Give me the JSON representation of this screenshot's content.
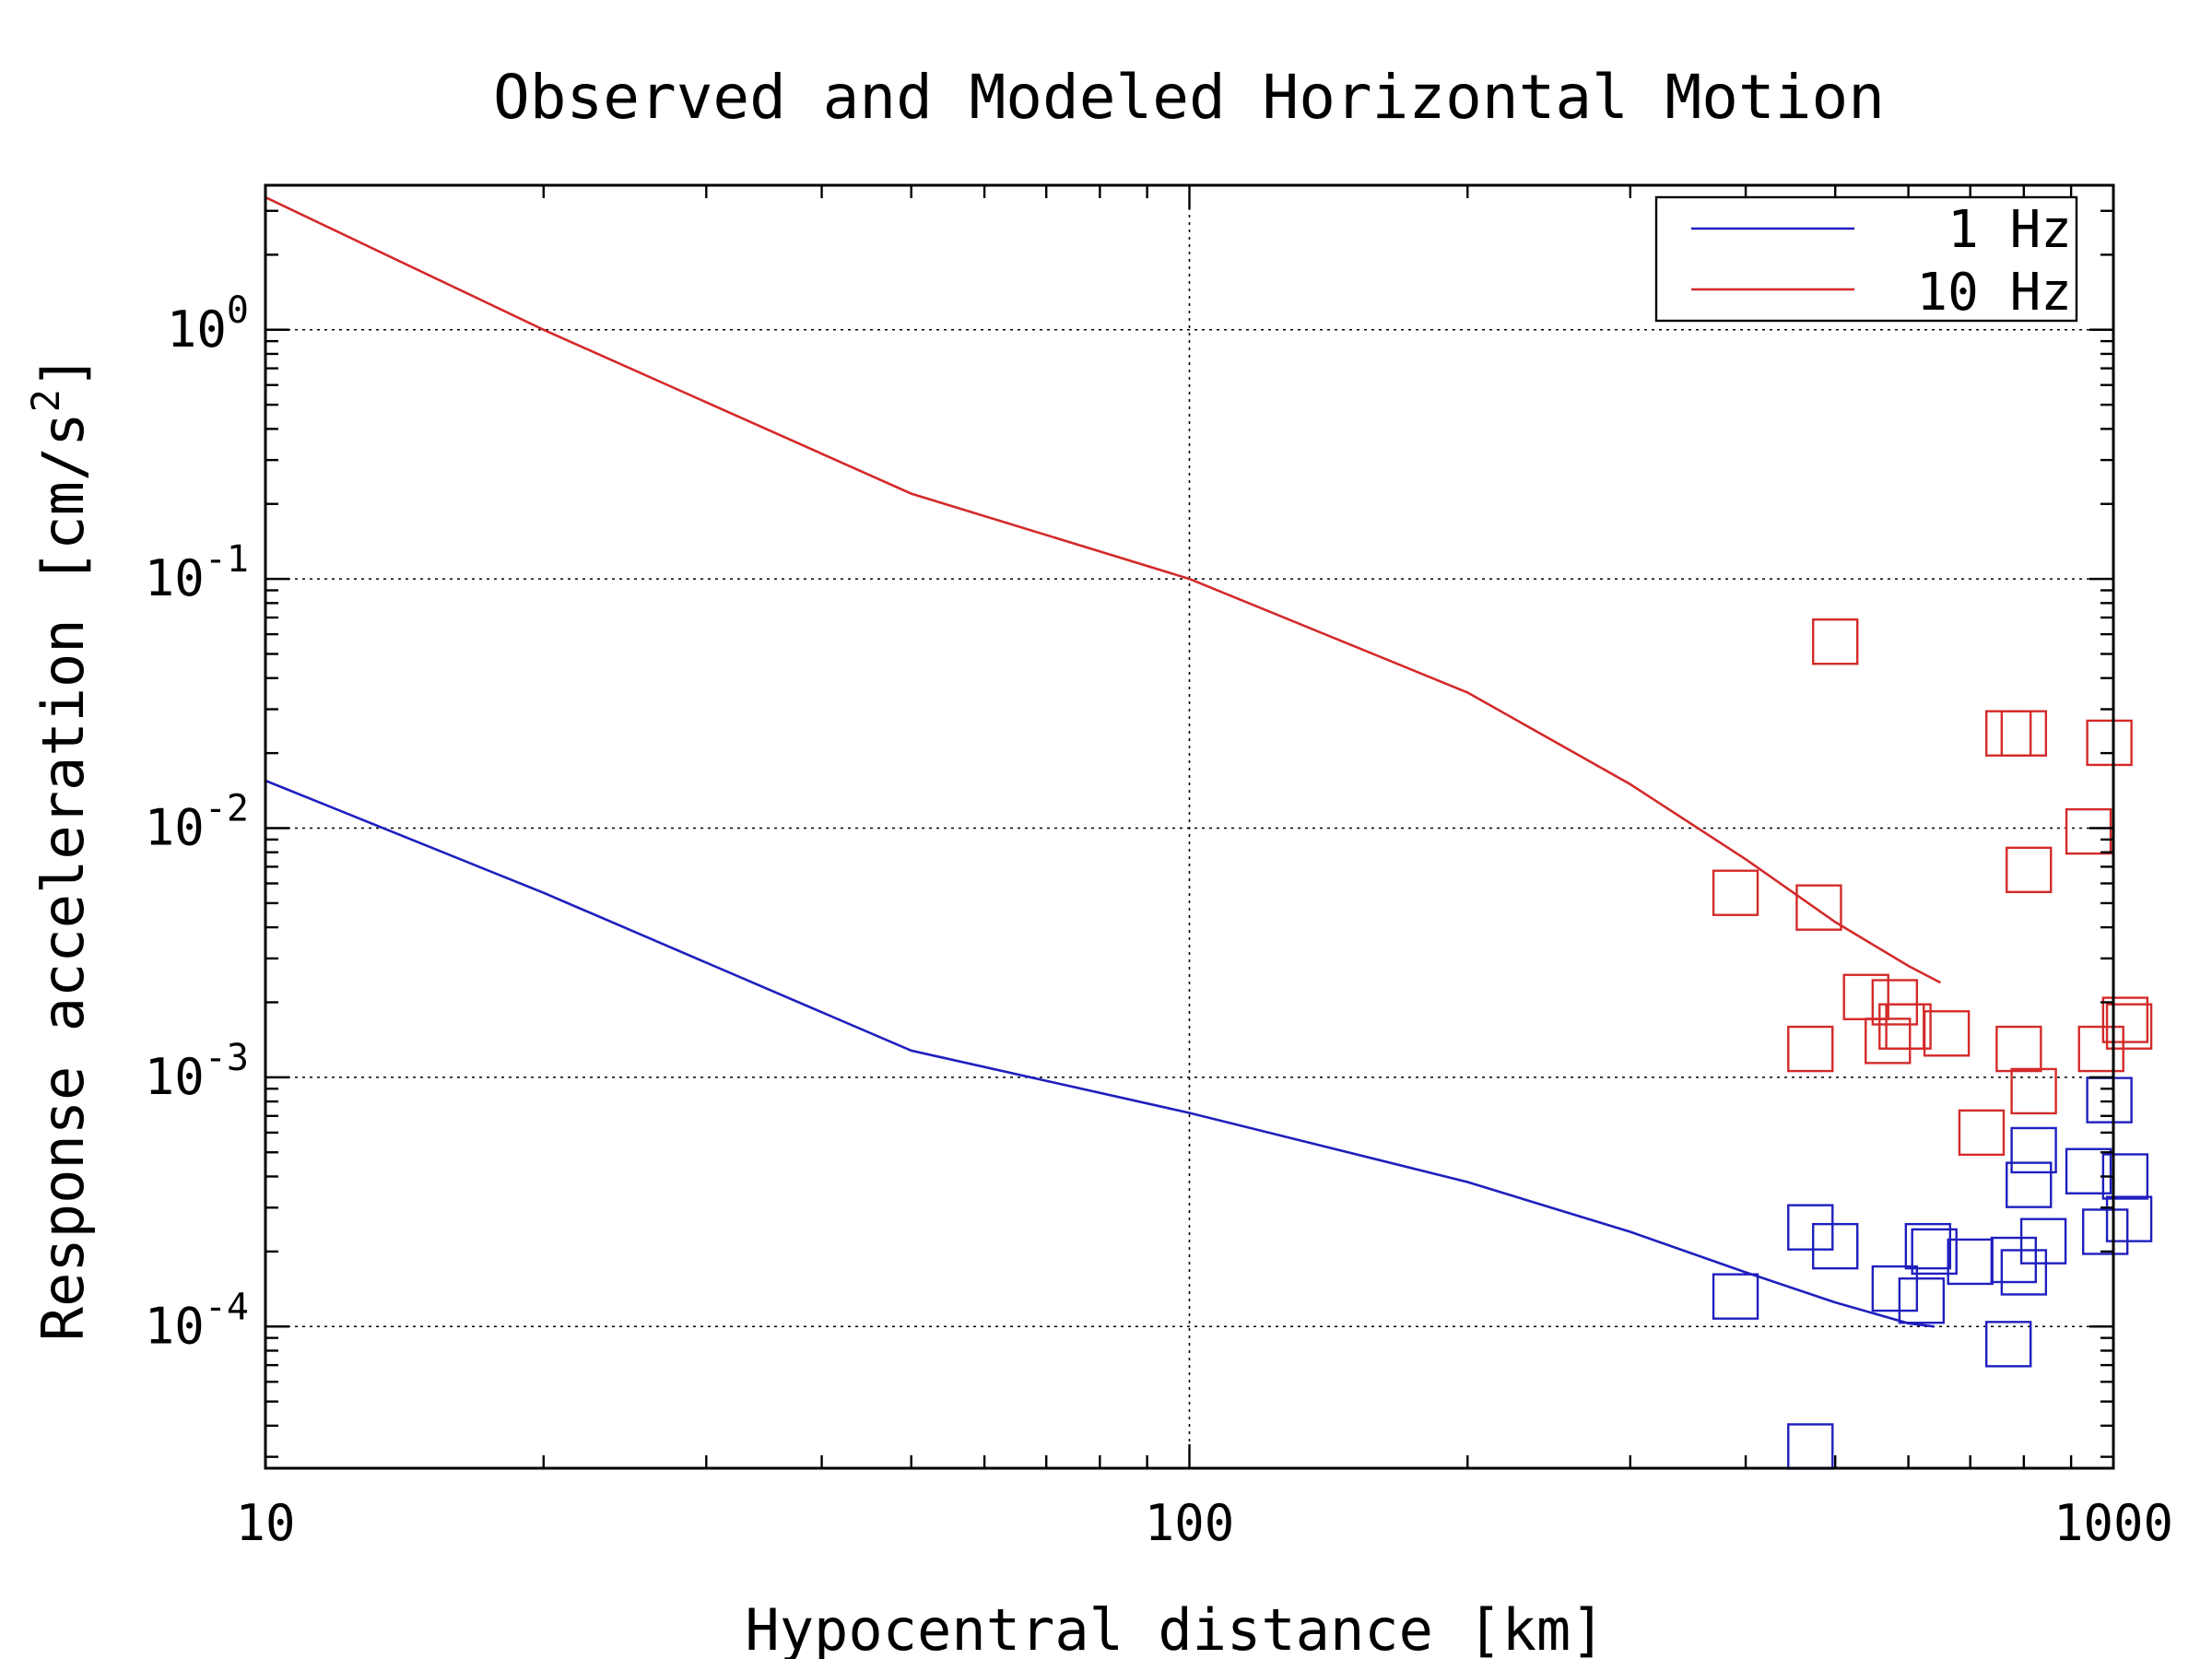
{
  "chart_data": {
    "type": "scatter",
    "title": "Observed and Modeled Horizontal Motion",
    "xlabel": "Hypocentral distance [km]",
    "ylabel": {
      "base": "Response acceleration [cm/s",
      "exponent": "2",
      "close": "]"
    },
    "xscale": "log",
    "yscale": "log",
    "xlim": [
      10,
      1000
    ],
    "ylim": [
      2.7e-05,
      3.8
    ],
    "x_ticks": [
      {
        "value": 10,
        "label": "10"
      },
      {
        "value": 100,
        "label": "100"
      },
      {
        "value": 1000,
        "label": "1000"
      }
    ],
    "y_ticks": [
      {
        "value": 0.0001,
        "base": "10",
        "exp": "-4"
      },
      {
        "value": 0.001,
        "base": "10",
        "exp": "-3"
      },
      {
        "value": 0.01,
        "base": "10",
        "exp": "-2"
      },
      {
        "value": 0.1,
        "base": "10",
        "exp": "-1"
      },
      {
        "value": 1,
        "base": "10",
        "exp": "0"
      }
    ],
    "grid": true,
    "legend_position": "top-right",
    "series": [
      {
        "name": "1 Hz",
        "color": "#1f1fbf",
        "model": {
          "x": [
            10,
            20,
            50,
            100,
            200,
            300,
            400,
            500,
            600,
            640
          ],
          "y": [
            0.0155,
            0.0055,
            0.00128,
            0.00072,
            0.00038,
            0.00024,
            0.000165,
            0.000125,
            0.000103,
            0.0001
          ]
        },
        "observed": {
          "x": [
            390,
            470,
            500,
            580,
            620,
            630,
            640,
            700,
            770,
            780,
            800,
            810,
            820,
            840,
            940,
            980,
            990,
            1030,
            1040,
            470
          ],
          "y": [
            0.000132,
            0.00025,
            0.00021,
            0.000142,
            0.000127,
            0.00021,
            0.0002,
            0.000182,
            8.5e-05,
            0.000185,
            0.000165,
            0.00037,
            0.00051,
            0.00022,
            0.00042,
            0.00024,
            0.00081,
            0.0004,
            0.00027,
            3.3e-05
          ]
        }
      },
      {
        "name": "10 Hz",
        "color": "#d42a2a",
        "model": {
          "x": [
            10,
            20,
            50,
            100,
            200,
            300,
            400,
            500,
            600,
            650
          ],
          "y": [
            3.4,
            1.0,
            0.22,
            0.1,
            0.035,
            0.015,
            0.0075,
            0.0042,
            0.0028,
            0.0024
          ]
        },
        "observed": {
          "x": [
            390,
            470,
            480,
            500,
            540,
            570,
            580,
            590,
            600,
            660,
            720,
            770,
            790,
            800,
            810,
            820,
            940,
            970,
            990,
            1030,
            1040
          ],
          "y": [
            0.0055,
            0.0013,
            0.0048,
            0.056,
            0.0021,
            0.0014,
            0.002,
            0.0016,
            0.0016,
            0.0015,
            0.0006,
            0.024,
            0.0013,
            0.024,
            0.0068,
            0.00088,
            0.0097,
            0.0013,
            0.022,
            0.0017,
            0.0016
          ]
        }
      }
    ]
  }
}
